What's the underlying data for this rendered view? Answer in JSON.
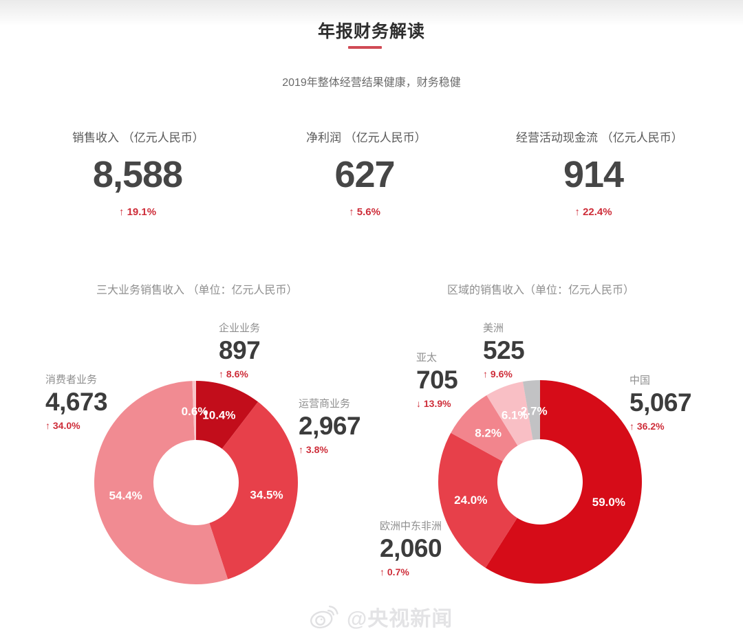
{
  "page": {
    "title": "年报财务解读",
    "subtitle": "2019年整体经营结果健康，财务稳健",
    "watermark": "@央视新闻"
  },
  "colors": {
    "accent_red": "#ce2d39",
    "title_underline": "#d04a55",
    "kpi_number": "#464646",
    "label_gray": "#8f8f8f"
  },
  "kpis": [
    {
      "label": "销售收入 （亿元人民币）",
      "value": "8,588",
      "change": "19.1%",
      "direction": "up"
    },
    {
      "label": "净利润 （亿元人民币）",
      "value": "627",
      "change": "5.6%",
      "direction": "up"
    },
    {
      "label": "经营活动现金流 （亿元人民币）",
      "value": "914",
      "change": "22.4%",
      "direction": "up"
    }
  ],
  "chart_data": [
    {
      "type": "pie",
      "donut": true,
      "title": "三大业务销售收入 （单位：亿元人民币）",
      "legend_position": "around",
      "slices": [
        {
          "name": "企业业务",
          "value": "897",
          "pct": 10.4,
          "pct_label": "10.4%",
          "change": "8.6%",
          "direction": "up",
          "color": "#c20d1b"
        },
        {
          "name": "运营商业务",
          "value": "2,967",
          "pct": 34.5,
          "pct_label": "34.5%",
          "change": "3.8%",
          "direction": "up",
          "color": "#e7404a"
        },
        {
          "name": "消费者业务",
          "value": "4,673",
          "pct": 54.4,
          "pct_label": "54.4%",
          "change": "34.0%",
          "direction": "up",
          "color": "#f18b92"
        },
        {
          "pct": 0.6,
          "pct_label": "0.6%",
          "color": "#f8c6ca"
        }
      ]
    },
    {
      "type": "pie",
      "donut": true,
      "title": "区域的销售收入（单位：亿元人民币）",
      "legend_position": "around",
      "slices": [
        {
          "name": "中国",
          "value": "5,067",
          "pct": 59.0,
          "pct_label": "59.0%",
          "change": "36.2%",
          "direction": "up",
          "color": "#d60c18"
        },
        {
          "name": "欧洲中东非洲",
          "value": "2,060",
          "pct": 24.0,
          "pct_label": "24.0%",
          "change": "0.7%",
          "direction": "up",
          "color": "#e7404a"
        },
        {
          "name": "亚太",
          "value": "705",
          "pct": 8.2,
          "pct_label": "8.2%",
          "change": "13.9%",
          "direction": "down",
          "color": "#f2858d"
        },
        {
          "name": "美洲",
          "value": "525",
          "pct": 6.1,
          "pct_label": "6.1%",
          "change": "9.6%",
          "direction": "up",
          "color": "#f9bfc5"
        },
        {
          "pct": 2.7,
          "pct_label": "2.7%",
          "color": "#c2c2c4"
        }
      ]
    }
  ]
}
